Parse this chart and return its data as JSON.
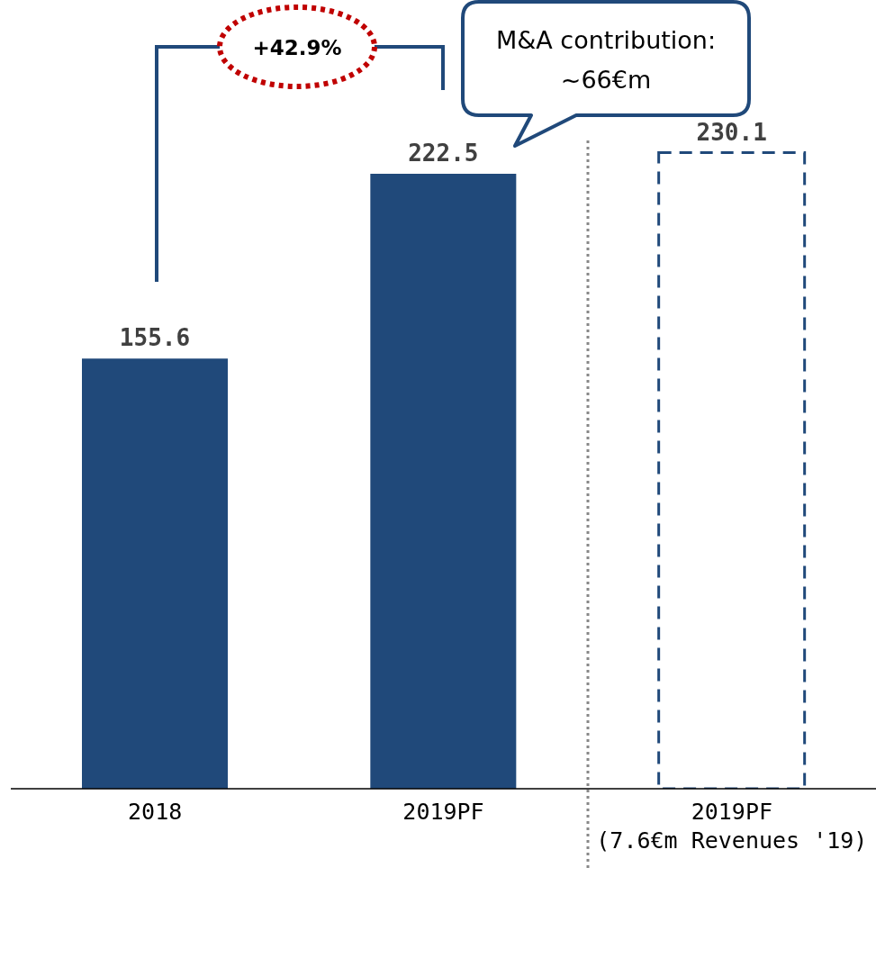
{
  "chart_data": {
    "type": "bar",
    "categories": [
      "2018",
      "2019PF",
      "2019PF\n(7.6€m Revenues '19)"
    ],
    "series": [
      {
        "color": "#20497a",
        "values": [
          155.6,
          222.5,
          null
        ]
      },
      {
        "color": "#20497a",
        "values": [
          null,
          null,
          230.1
        ],
        "line_style": "dashed"
      }
    ],
    "stacked": true,
    "data_labels": true,
    "annotations": [
      "+42.9%",
      "M&A contribution:\n~66€m"
    ]
  }
}
